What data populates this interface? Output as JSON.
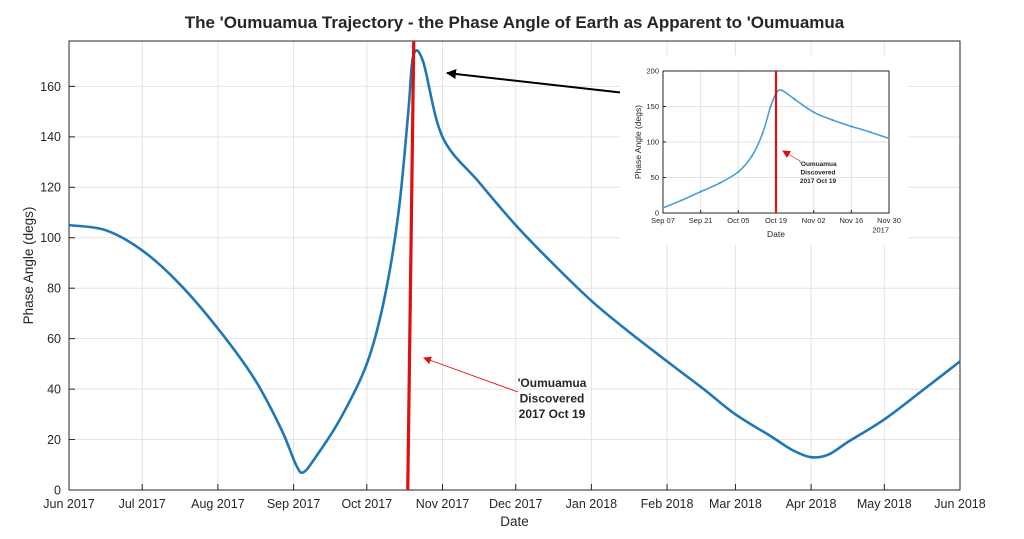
{
  "chart_data": [
    {
      "type": "line",
      "title": "The 'Oumuamua Trajectory - the Phase Angle of Earth as Apparent to 'Oumuamua",
      "xlabel": "Date",
      "ylabel": "Phase Angle (degs)",
      "xlim": [
        "2017-06-01",
        "2018-06-01"
      ],
      "ylim": [
        0,
        178
      ],
      "x_ticks": [
        "2017-06-01",
        "2017-07-01",
        "2017-08-01",
        "2017-09-01",
        "2017-10-01",
        "2017-11-01",
        "2017-12-01",
        "2018-01-01",
        "2018-02-01",
        "2018-03-01",
        "2018-04-01",
        "2018-05-01",
        "2018-06-01"
      ],
      "x_tick_labels": [
        "Jun 2017",
        "Jul 2017",
        "Aug 2017",
        "Sep 2017",
        "Oct 2017",
        "Nov 2017",
        "Dec 2017",
        "Jan 2018",
        "Feb 2018",
        "Mar 2018",
        "Apr 2018",
        "May 2018",
        "Jun 2018"
      ],
      "y_ticks": [
        0,
        20,
        40,
        60,
        80,
        100,
        120,
        140,
        160
      ],
      "grid": true,
      "series_color": "#1f77b4",
      "series": [
        {
          "x": [
            "2017-06-01",
            "2017-06-16",
            "2017-07-01",
            "2017-07-16",
            "2017-08-01",
            "2017-08-16",
            "2017-08-27",
            "2017-09-02",
            "2017-09-05",
            "2017-09-10",
            "2017-09-20",
            "2017-10-01",
            "2017-10-08",
            "2017-10-14",
            "2017-10-18",
            "2017-10-20",
            "2017-10-24",
            "2017-11-01",
            "2017-11-16",
            "2017-12-01",
            "2017-12-16",
            "2018-01-01",
            "2018-01-16",
            "2018-02-01",
            "2018-02-16",
            "2018-03-01",
            "2018-03-16",
            "2018-03-24",
            "2018-04-01",
            "2018-04-08",
            "2018-04-16",
            "2018-05-01",
            "2018-05-16",
            "2018-06-01"
          ],
          "values": [
            105,
            103,
            95,
            82,
            64,
            44,
            24,
            10,
            7,
            13,
            28,
            50,
            75,
            110,
            150,
            172,
            170,
            140,
            122,
            105,
            90,
            75,
            63,
            51,
            40,
            30,
            21,
            16,
            13,
            14,
            19,
            28,
            39,
            51
          ]
        }
      ],
      "discovery_line": {
        "x": "2017-10-19",
        "color": "#e01010"
      },
      "annotation": {
        "lines": [
          "'Oumuamua",
          "Discovered",
          "2017 Oct 19"
        ],
        "color": "#e01010"
      },
      "arrow_color": "#000000"
    },
    {
      "type": "line",
      "title": "",
      "xlabel": "Date",
      "ylabel": "Phase Angle (degs)",
      "xlim": [
        "2017-09-07",
        "2017-11-30"
      ],
      "ylim": [
        0,
        200
      ],
      "x_ticks": [
        "2017-09-07",
        "2017-09-21",
        "2017-10-05",
        "2017-10-19",
        "2017-11-02",
        "2017-11-16",
        "2017-11-30"
      ],
      "x_tick_labels": [
        "Sep 07",
        "Sep 21",
        "Oct 05",
        "Oct 19",
        "Nov 02",
        "Nov 16",
        "Nov 30"
      ],
      "x_secondary_label": "2017",
      "y_ticks": [
        0,
        50,
        100,
        150,
        200
      ],
      "grid": true,
      "series_color": "#4a9fd6",
      "series": [
        {
          "x": [
            "2017-09-07",
            "2017-09-14",
            "2017-09-21",
            "2017-09-28",
            "2017-10-05",
            "2017-10-10",
            "2017-10-14",
            "2017-10-17",
            "2017-10-19",
            "2017-10-21",
            "2017-10-26",
            "2017-11-02",
            "2017-11-09",
            "2017-11-16",
            "2017-11-23",
            "2017-11-30"
          ],
          "values": [
            7,
            18,
            30,
            42,
            58,
            80,
            112,
            150,
            168,
            173,
            160,
            142,
            131,
            122,
            114,
            105
          ]
        }
      ],
      "discovery_line": {
        "x": "2017-10-19",
        "color": "#e01010"
      },
      "annotation": {
        "lines": [
          "'Oumuamua",
          "Discovered",
          "2017 Oct 19"
        ],
        "color": "#e01010"
      }
    }
  ]
}
